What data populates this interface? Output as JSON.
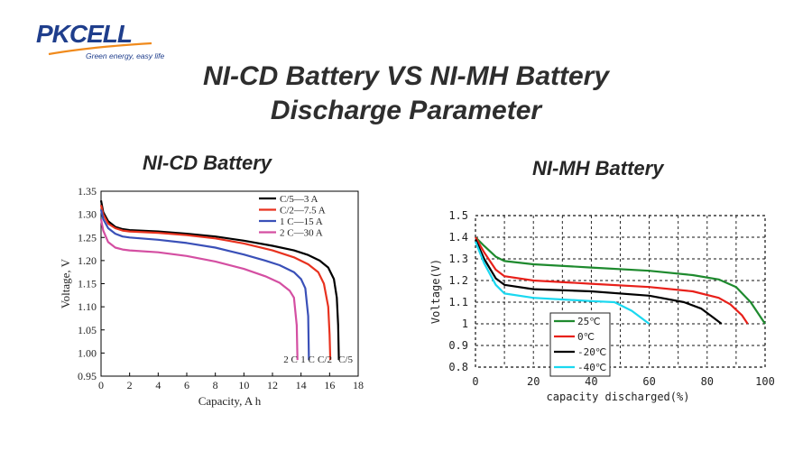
{
  "brand": {
    "logo_text": "PKCELL",
    "tagline": "Green energy, easy life",
    "colors": {
      "logo_blue": "#1f3e8c",
      "logo_orange": "#f08a1c"
    }
  },
  "header": {
    "title_line1": "NI-CD Battery VS NI-MH Battery",
    "title_line2": "Discharge Parameter"
  },
  "chart_data": [
    {
      "type": "line",
      "title": "NI-CD Battery",
      "xlabel": "Capacity, A h",
      "ylabel": "Voltage, V",
      "xlim": [
        0,
        18
      ],
      "ylim": [
        0.95,
        1.35
      ],
      "xticks": [
        "0",
        "2",
        "4",
        "6",
        "8",
        "10",
        "12",
        "14",
        "16",
        "18"
      ],
      "yticks": [
        "0.95",
        "1.00",
        "1.05",
        "1.10",
        "1.15",
        "1.20",
        "1.25",
        "1.30",
        "1.35"
      ],
      "grid": false,
      "legend_position": "top-right",
      "end_labels": [
        "2 C",
        "1 C",
        "C/2",
        "C/5"
      ],
      "series": [
        {
          "name": "C/5—3 A",
          "color": "#000000",
          "points": [
            [
              0,
              1.33
            ],
            [
              0.15,
              1.305
            ],
            [
              0.5,
              1.285
            ],
            [
              1,
              1.273
            ],
            [
              1.5,
              1.268
            ],
            [
              2,
              1.266
            ],
            [
              4,
              1.263
            ],
            [
              6,
              1.258
            ],
            [
              8,
              1.252
            ],
            [
              10,
              1.243
            ],
            [
              12,
              1.232
            ],
            [
              13.5,
              1.222
            ],
            [
              14.5,
              1.212
            ],
            [
              15.3,
              1.2
            ],
            [
              15.9,
              1.185
            ],
            [
              16.3,
              1.16
            ],
            [
              16.5,
              1.12
            ],
            [
              16.6,
              1.06
            ],
            [
              16.65,
              0.985
            ]
          ]
        },
        {
          "name": "C/2—7.5 A",
          "color": "#e8321f",
          "points": [
            [
              0,
              1.32
            ],
            [
              0.15,
              1.3
            ],
            [
              0.5,
              1.28
            ],
            [
              1,
              1.27
            ],
            [
              1.5,
              1.265
            ],
            [
              2,
              1.263
            ],
            [
              4,
              1.26
            ],
            [
              6,
              1.255
            ],
            [
              8,
              1.248
            ],
            [
              10,
              1.237
            ],
            [
              12,
              1.222
            ],
            [
              13.5,
              1.207
            ],
            [
              14.5,
              1.192
            ],
            [
              15.2,
              1.175
            ],
            [
              15.6,
              1.15
            ],
            [
              15.9,
              1.1
            ],
            [
              16,
              1.04
            ],
            [
              16.05,
              0.985
            ]
          ]
        },
        {
          "name": "1 C—15 A",
          "color": "#3a50b8",
          "points": [
            [
              0,
              1.31
            ],
            [
              0.15,
              1.29
            ],
            [
              0.5,
              1.27
            ],
            [
              1,
              1.258
            ],
            [
              1.5,
              1.252
            ],
            [
              2,
              1.25
            ],
            [
              4,
              1.245
            ],
            [
              6,
              1.238
            ],
            [
              8,
              1.228
            ],
            [
              10,
              1.213
            ],
            [
              11.5,
              1.2
            ],
            [
              12.5,
              1.19
            ],
            [
              13.5,
              1.175
            ],
            [
              14,
              1.16
            ],
            [
              14.3,
              1.14
            ],
            [
              14.5,
              1.08
            ],
            [
              14.55,
              0.985
            ]
          ]
        },
        {
          "name": "2 C—30 A",
          "color": "#d44fa2",
          "points": [
            [
              0,
              1.29
            ],
            [
              0.15,
              1.265
            ],
            [
              0.5,
              1.24
            ],
            [
              1,
              1.228
            ],
            [
              1.5,
              1.224
            ],
            [
              2,
              1.222
            ],
            [
              4,
              1.218
            ],
            [
              6,
              1.21
            ],
            [
              8,
              1.198
            ],
            [
              10,
              1.182
            ],
            [
              11.5,
              1.166
            ],
            [
              12.5,
              1.152
            ],
            [
              13.2,
              1.135
            ],
            [
              13.5,
              1.12
            ],
            [
              13.7,
              1.06
            ],
            [
              13.75,
              0.985
            ]
          ]
        }
      ]
    },
    {
      "type": "line",
      "title": "NI-MH Battery",
      "xlabel": "capacity discharged(%)",
      "ylabel": "Voltage(V)",
      "xlim": [
        0,
        100
      ],
      "ylim": [
        0.8,
        1.5
      ],
      "xticks": [
        "0",
        "20",
        "40",
        "60",
        "80",
        "100"
      ],
      "yticks": [
        "0.8",
        "0.9",
        "1",
        "1.1",
        "1.2",
        "1.3",
        "1.4",
        "1.5"
      ],
      "grid": true,
      "legend_position": "bottom-left",
      "series": [
        {
          "name": "25℃",
          "color": "#1e8a2e",
          "points": [
            [
              0,
              1.4
            ],
            [
              3,
              1.36
            ],
            [
              7,
              1.31
            ],
            [
              10,
              1.29
            ],
            [
              20,
              1.275
            ],
            [
              40,
              1.26
            ],
            [
              60,
              1.245
            ],
            [
              75,
              1.225
            ],
            [
              84,
              1.205
            ],
            [
              90,
              1.17
            ],
            [
              95,
              1.1
            ],
            [
              100,
              1.0
            ]
          ]
        },
        {
          "name": "0℃",
          "color": "#e8201a",
          "points": [
            [
              0,
              1.4
            ],
            [
              3,
              1.33
            ],
            [
              7,
              1.25
            ],
            [
              10,
              1.22
            ],
            [
              20,
              1.2
            ],
            [
              40,
              1.185
            ],
            [
              60,
              1.17
            ],
            [
              75,
              1.15
            ],
            [
              84,
              1.12
            ],
            [
              88,
              1.09
            ],
            [
              92,
              1.04
            ],
            [
              94,
              1.0
            ]
          ]
        },
        {
          "name": "-20℃",
          "color": "#000000",
          "points": [
            [
              0,
              1.39
            ],
            [
              3,
              1.3
            ],
            [
              7,
              1.21
            ],
            [
              10,
              1.18
            ],
            [
              20,
              1.16
            ],
            [
              40,
              1.15
            ],
            [
              60,
              1.13
            ],
            [
              72,
              1.1
            ],
            [
              78,
              1.07
            ],
            [
              82,
              1.03
            ],
            [
              85,
              1.0
            ]
          ]
        },
        {
          "name": "-40℃",
          "color": "#1ad8f0",
          "points": [
            [
              0,
              1.38
            ],
            [
              3,
              1.28
            ],
            [
              7,
              1.18
            ],
            [
              10,
              1.14
            ],
            [
              20,
              1.12
            ],
            [
              40,
              1.105
            ],
            [
              48,
              1.1
            ],
            [
              54,
              1.06
            ],
            [
              58,
              1.02
            ],
            [
              60,
              1.0
            ]
          ]
        }
      ]
    }
  ]
}
